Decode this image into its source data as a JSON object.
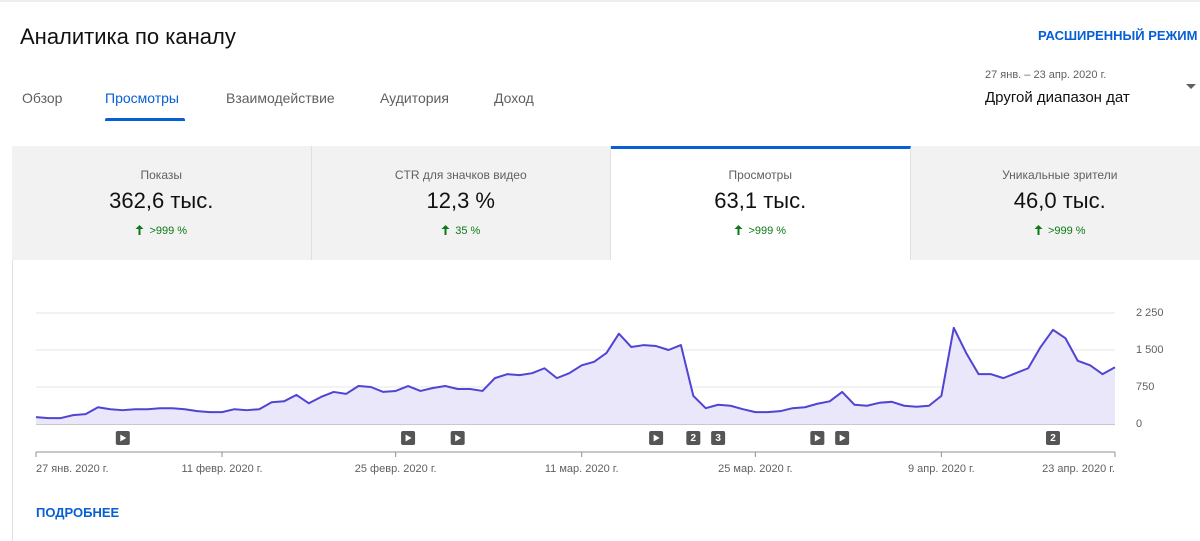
{
  "header": {
    "title": "Аналитика по каналу",
    "advanced_mode": "РАСШИРЕННЫЙ РЕЖИМ"
  },
  "tabs": [
    "Обзор",
    "Просмотры",
    "Взаимодействие",
    "Аудитория",
    "Доход"
  ],
  "active_tab": 1,
  "date_range": {
    "dates": "27 янв. – 23 апр. 2020 г.",
    "label": "Другой диапазон дат"
  },
  "metrics": [
    {
      "label": "Показы",
      "value": "362,6 тыс.",
      "change": ">999 %"
    },
    {
      "label": "CTR для значков видео",
      "value": "12,3 %",
      "change": "35 %"
    },
    {
      "label": "Просмотры",
      "value": "63,1 тыс.",
      "change": ">999 %"
    },
    {
      "label": "Уникальные зрители",
      "value": "46,0 тыс.",
      "change": ">999 %"
    }
  ],
  "active_metric": 2,
  "chart_data": {
    "type": "line",
    "categories": [
      "27 янв. 2020 г.",
      null,
      null,
      null,
      null,
      null,
      null,
      null,
      null,
      null,
      null,
      null,
      null,
      null,
      null,
      "11 февр. 2020 г.",
      null,
      null,
      null,
      null,
      null,
      null,
      null,
      null,
      null,
      null,
      null,
      null,
      null,
      "25 февр. 2020 г.",
      null,
      null,
      null,
      null,
      null,
      null,
      null,
      null,
      null,
      null,
      null,
      null,
      null,
      null,
      "11 мар. 2020 г.",
      null,
      null,
      null,
      null,
      null,
      null,
      null,
      null,
      null,
      null,
      null,
      null,
      null,
      "25 мар. 2020 г.",
      null,
      null,
      null,
      null,
      null,
      null,
      null,
      null,
      null,
      null,
      null,
      null,
      null,
      null,
      "9 апр. 2020 г.",
      null,
      null,
      null,
      null,
      null,
      null,
      null,
      null,
      null,
      null,
      null,
      null,
      null,
      "23 апр. 2020 г."
    ],
    "values": [
      140,
      120,
      120,
      180,
      200,
      340,
      300,
      280,
      300,
      300,
      320,
      320,
      300,
      260,
      240,
      240,
      300,
      280,
      300,
      440,
      460,
      590,
      420,
      550,
      650,
      610,
      770,
      750,
      650,
      670,
      770,
      670,
      730,
      770,
      710,
      710,
      670,
      930,
      1010,
      990,
      1030,
      1130,
      930,
      1030,
      1190,
      1260,
      1440,
      1830,
      1560,
      1600,
      1580,
      1500,
      1600,
      570,
      320,
      390,
      370,
      300,
      240,
      240,
      260,
      320,
      340,
      410,
      460,
      650,
      390,
      370,
      430,
      450,
      370,
      350,
      370,
      570,
      1950,
      1440,
      1010,
      1010,
      930,
      1030,
      1130,
      1560,
      1910,
      1740,
      1280,
      1190,
      1010,
      1150
    ],
    "color": "#4f44d4",
    "fill": "#e9e7f9",
    "ylim": [
      0,
      2250
    ],
    "yticks": [
      0,
      750,
      {
        "value": 1500,
        "label": "1 500"
      },
      {
        "value": 2250,
        "label": "2 250"
      }
    ],
    "grid": true,
    "event_markers": [
      {
        "index": 7
      },
      {
        "index": 30
      },
      {
        "index": 34
      },
      {
        "index": 50
      },
      {
        "index": 53,
        "label": "2"
      },
      {
        "index": 55,
        "label": "3"
      },
      {
        "index": 63
      },
      {
        "index": 65
      },
      {
        "index": 82,
        "label": "2"
      }
    ]
  },
  "more_link": "ПОДРОБНЕЕ"
}
